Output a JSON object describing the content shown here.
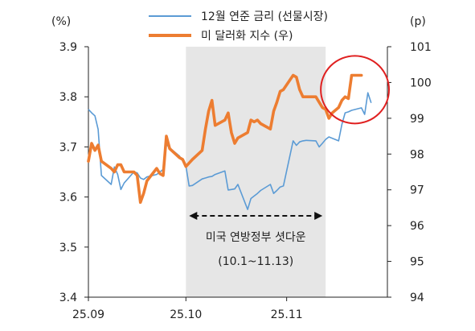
{
  "chart_data": {
    "type": "line",
    "left_unit": "(%)",
    "right_unit": "(p)",
    "left_axis": {
      "min": 3.4,
      "max": 3.9,
      "ticks": [
        "3.4",
        "3.5",
        "3.6",
        "3.7",
        "3.8",
        "3.9"
      ]
    },
    "right_axis": {
      "min": 94,
      "max": 101,
      "ticks": [
        "94",
        "95",
        "96",
        "97",
        "98",
        "99",
        "100",
        "101"
      ]
    },
    "x_axis": {
      "start": "2025-09-01",
      "end": "2025-12-02",
      "ticks": [
        {
          "date": "2025-09-01",
          "label": "25.09"
        },
        {
          "date": "2025-10-01",
          "label": "25.10"
        },
        {
          "date": "2025-11-01",
          "label": "25.11"
        }
      ]
    },
    "shade": {
      "start": "2025-10-01",
      "end": "2025-11-13"
    },
    "annotation": {
      "line1": "미국 연방정부 셧다운",
      "line2": "(10.1~11.13)"
    },
    "highlight_circle": {
      "start": "2025-11-12",
      "end": "2025-12-02",
      "y_right_center": 99.8
    },
    "series": [
      {
        "name": "12월 연준 금리 (선물시장)",
        "axis": "left",
        "color": "#5b9bd5",
        "points": [
          [
            "2025-09-01",
            3.775
          ],
          [
            "2025-09-02",
            3.768
          ],
          [
            "2025-09-03",
            3.762
          ],
          [
            "2025-09-04",
            3.735
          ],
          [
            "2025-09-05",
            3.643
          ],
          [
            "2025-09-08",
            3.625
          ],
          [
            "2025-09-09",
            3.66
          ],
          [
            "2025-09-10",
            3.645
          ],
          [
            "2025-09-11",
            3.615
          ],
          [
            "2025-09-12",
            3.628
          ],
          [
            "2025-09-15",
            3.65
          ],
          [
            "2025-09-16",
            3.648
          ],
          [
            "2025-09-17",
            3.638
          ],
          [
            "2025-09-18",
            3.635
          ],
          [
            "2025-09-19",
            3.64
          ],
          [
            "2025-09-22",
            3.645
          ],
          [
            "2025-09-23",
            3.65
          ],
          [
            "2025-09-24",
            3.655
          ],
          [
            "2025-09-25",
            3.705
          ],
          [
            "2025-09-26",
            3.698
          ],
          [
            "2025-09-29",
            3.682
          ],
          [
            "2025-09-30",
            3.672
          ],
          [
            "2025-10-01",
            3.662
          ],
          [
            "2025-10-02",
            3.622
          ],
          [
            "2025-10-03",
            3.623
          ],
          [
            "2025-10-06",
            3.636
          ],
          [
            "2025-10-07",
            3.638
          ],
          [
            "2025-10-08",
            3.64
          ],
          [
            "2025-10-09",
            3.641
          ],
          [
            "2025-10-10",
            3.645
          ],
          [
            "2025-10-13",
            3.652
          ],
          [
            "2025-10-14",
            3.614
          ],
          [
            "2025-10-15",
            3.615
          ],
          [
            "2025-10-16",
            3.616
          ],
          [
            "2025-10-17",
            3.625
          ],
          [
            "2025-10-20",
            3.575
          ],
          [
            "2025-10-21",
            3.597
          ],
          [
            "2025-10-22",
            3.602
          ],
          [
            "2025-10-23",
            3.607
          ],
          [
            "2025-10-24",
            3.613
          ],
          [
            "2025-10-27",
            3.625
          ],
          [
            "2025-10-28",
            3.607
          ],
          [
            "2025-10-29",
            3.613
          ],
          [
            "2025-10-30",
            3.62
          ],
          [
            "2025-10-31",
            3.622
          ],
          [
            "2025-11-03",
            3.712
          ],
          [
            "2025-11-04",
            3.703
          ],
          [
            "2025-11-05",
            3.71
          ],
          [
            "2025-11-06",
            3.712
          ],
          [
            "2025-11-07",
            3.713
          ],
          [
            "2025-11-10",
            3.712
          ],
          [
            "2025-11-11",
            3.7
          ],
          [
            "2025-11-12",
            3.707
          ],
          [
            "2025-11-13",
            3.715
          ],
          [
            "2025-11-14",
            3.72
          ],
          [
            "2025-11-17",
            3.712
          ],
          [
            "2025-11-18",
            3.745
          ],
          [
            "2025-11-19",
            3.768
          ],
          [
            "2025-11-20",
            3.77
          ],
          [
            "2025-11-21",
            3.773
          ],
          [
            "2025-11-24",
            3.778
          ],
          [
            "2025-11-25",
            3.765
          ],
          [
            "2025-11-26",
            3.808
          ],
          [
            "2025-11-27",
            3.788
          ]
        ]
      },
      {
        "name": "미 달러화 지수 (우)",
        "axis": "right",
        "color": "#ed7d31",
        "points": [
          [
            "2025-09-01",
            97.8
          ],
          [
            "2025-09-02",
            98.3
          ],
          [
            "2025-09-03",
            98.1
          ],
          [
            "2025-09-04",
            98.25
          ],
          [
            "2025-09-05",
            97.8
          ],
          [
            "2025-09-08",
            97.6
          ],
          [
            "2025-09-09",
            97.5
          ],
          [
            "2025-09-10",
            97.7
          ],
          [
            "2025-09-11",
            97.7
          ],
          [
            "2025-09-12",
            97.5
          ],
          [
            "2025-09-15",
            97.5
          ],
          [
            "2025-09-16",
            97.4
          ],
          [
            "2025-09-17",
            96.65
          ],
          [
            "2025-09-18",
            96.9
          ],
          [
            "2025-09-19",
            97.25
          ],
          [
            "2025-09-22",
            97.6
          ],
          [
            "2025-09-23",
            97.45
          ],
          [
            "2025-09-24",
            97.4
          ],
          [
            "2025-09-25",
            98.5
          ],
          [
            "2025-09-26",
            98.15
          ],
          [
            "2025-09-29",
            97.9
          ],
          [
            "2025-09-30",
            97.85
          ],
          [
            "2025-10-01",
            97.65
          ],
          [
            "2025-10-02",
            97.75
          ],
          [
            "2025-10-03",
            97.85
          ],
          [
            "2025-10-06",
            98.1
          ],
          [
            "2025-10-07",
            98.7
          ],
          [
            "2025-10-08",
            99.2
          ],
          [
            "2025-10-09",
            99.5
          ],
          [
            "2025-10-10",
            98.8
          ],
          [
            "2025-10-13",
            98.95
          ],
          [
            "2025-10-14",
            99.15
          ],
          [
            "2025-10-15",
            98.6
          ],
          [
            "2025-10-16",
            98.3
          ],
          [
            "2025-10-17",
            98.45
          ],
          [
            "2025-10-20",
            98.6
          ],
          [
            "2025-10-21",
            98.95
          ],
          [
            "2025-10-22",
            98.9
          ],
          [
            "2025-10-23",
            98.95
          ],
          [
            "2025-10-24",
            98.85
          ],
          [
            "2025-10-27",
            98.7
          ],
          [
            "2025-10-28",
            99.2
          ],
          [
            "2025-10-29",
            99.45
          ],
          [
            "2025-10-30",
            99.75
          ],
          [
            "2025-10-31",
            99.8
          ],
          [
            "2025-11-03",
            100.2
          ],
          [
            "2025-11-04",
            100.15
          ],
          [
            "2025-11-05",
            99.8
          ],
          [
            "2025-11-06",
            99.6
          ],
          [
            "2025-11-07",
            99.6
          ],
          [
            "2025-11-10",
            99.6
          ],
          [
            "2025-11-11",
            99.45
          ],
          [
            "2025-11-12",
            99.3
          ],
          [
            "2025-11-13",
            99.25
          ],
          [
            "2025-11-14",
            99.0
          ],
          [
            "2025-11-15",
            99.15
          ],
          [
            "2025-11-17",
            99.3
          ],
          [
            "2025-11-18",
            99.5
          ],
          [
            "2025-11-19",
            99.6
          ],
          [
            "2025-11-20",
            99.55
          ],
          [
            "2025-11-21",
            100.2
          ],
          [
            "2025-11-22",
            100.2
          ],
          [
            "2025-11-24",
            100.2
          ]
        ]
      }
    ]
  }
}
